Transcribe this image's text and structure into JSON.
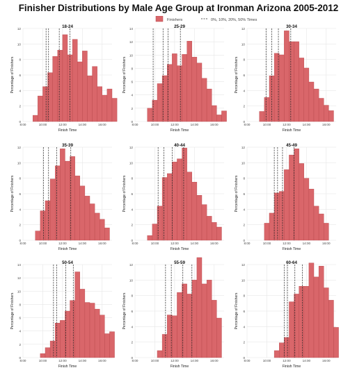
{
  "title": "Finisher Distributions by Male Age Group at Ironman Arizona 2005-2012",
  "legend": {
    "finishers_label": "Finishers",
    "times_label": "0%, 10%, 20%, 50% Times"
  },
  "colors": {
    "bar_fill": "#d9666a",
    "bar_stroke": "#b8474b",
    "panel_bg": "#ffffff",
    "grid": "#e6e6e6",
    "marker_line": "#222222"
  },
  "chart_data": [
    {
      "type": "bar",
      "title": "18-24",
      "xlabel": "Finish Time",
      "ylabel": "Percentage of Finishers",
      "xlim": [
        "8:00",
        "17:00"
      ],
      "ylim": [
        0,
        12
      ],
      "xticks": [
        "8:00",
        "10:00",
        "12:00",
        "14:00",
        "16:00"
      ],
      "yticks": [
        0,
        2,
        4,
        6,
        8,
        10,
        12
      ],
      "bin_start_hours": 9.0,
      "bin_width_hours": 0.5,
      "values": [
        0.8,
        3.3,
        4.5,
        6.3,
        8.4,
        9.2,
        11.2,
        8.6,
        10.6,
        7.7,
        9.1,
        5.9,
        7.1,
        4.5,
        3.4,
        4.2,
        3.0
      ],
      "marker_times": [
        "10:20",
        "10:35",
        "11:40",
        "12:45"
      ]
    },
    {
      "type": "bar",
      "title": "25-29",
      "xlabel": "Finish Time",
      "ylabel": "Percentage of Finishers",
      "xlim": [
        "8:00",
        "17:00"
      ],
      "ylim": [
        0,
        14
      ],
      "xticks": [
        "8:00",
        "10:00",
        "12:00",
        "14:00",
        "16:00"
      ],
      "yticks": [
        0,
        2,
        4,
        6,
        8,
        10,
        12,
        14
      ],
      "bin_start_hours": 9.25,
      "bin_width_hours": 0.5,
      "values": [
        2.0,
        3.2,
        5.7,
        6.9,
        8.6,
        10.2,
        8.4,
        10.1,
        12.1,
        9.7,
        8.8,
        6.5,
        4.9,
        2.4,
        1.0,
        1.6
      ],
      "marker_times": [
        "9:50",
        "10:50",
        "11:20",
        "12:35"
      ]
    },
    {
      "type": "bar",
      "title": "30-34",
      "xlabel": "Finish Time",
      "ylabel": "Percentage of Finishers",
      "xlim": [
        "8:00",
        "17:00"
      ],
      "ylim": [
        0,
        12
      ],
      "xticks": [
        "8:00",
        "10:00",
        "12:00",
        "14:00",
        "16:00"
      ],
      "yticks": [
        0,
        2,
        4,
        6,
        8,
        10,
        12
      ],
      "bin_start_hours": 9.25,
      "bin_width_hours": 0.5,
      "values": [
        1.3,
        3.1,
        5.9,
        8.8,
        8.6,
        11.7,
        10.3,
        10.3,
        8.2,
        6.9,
        5.1,
        4.2,
        3.0,
        2.1,
        1.4
      ],
      "marker_times": [
        "9:55",
        "10:30",
        "11:10",
        "12:25"
      ]
    },
    {
      "type": "bar",
      "title": "35-39",
      "xlabel": "Finish Time",
      "ylabel": "Percentage of Finishers",
      "xlim": [
        "8:00",
        "17:00"
      ],
      "ylim": [
        0,
        12
      ],
      "xticks": [
        "8:00",
        "10:00",
        "12:00",
        "14:00",
        "16:00"
      ],
      "yticks": [
        0,
        2,
        4,
        6,
        8,
        10,
        12
      ],
      "bin_start_hours": 9.25,
      "bin_width_hours": 0.5,
      "values": [
        1.2,
        3.8,
        5.1,
        7.9,
        9.6,
        11.8,
        10.2,
        10.8,
        8.3,
        7.0,
        5.7,
        4.7,
        3.5,
        2.7,
        1.6
      ],
      "marker_times": [
        "10:05",
        "10:35",
        "11:25",
        "12:50"
      ]
    },
    {
      "type": "bar",
      "title": "40-44",
      "xlabel": "Finish Time",
      "ylabel": "Percentage of Finishers",
      "xlim": [
        "8:00",
        "17:00"
      ],
      "ylim": [
        0,
        12
      ],
      "xticks": [
        "8:00",
        "10:00",
        "12:00",
        "14:00",
        "16:00"
      ],
      "yticks": [
        0,
        2,
        4,
        6,
        8,
        10,
        12
      ],
      "bin_start_hours": 9.25,
      "bin_width_hours": 0.5,
      "values": [
        0.6,
        2.1,
        4.4,
        8.1,
        8.6,
        10.1,
        10.5,
        11.9,
        8.8,
        7.5,
        5.8,
        4.6,
        3.1,
        2.3,
        1.7
      ],
      "marker_times": [
        "10:20",
        "10:55",
        "11:45",
        "12:55"
      ]
    },
    {
      "type": "bar",
      "title": "45-49",
      "xlabel": "Finish Time",
      "ylabel": "Percentage of Finishers",
      "xlim": [
        "8:00",
        "17:00"
      ],
      "ylim": [
        0,
        12
      ],
      "xticks": [
        "8:00",
        "10:00",
        "12:00",
        "14:00",
        "16:00"
      ],
      "yticks": [
        0,
        2,
        4,
        6,
        8,
        10,
        12
      ],
      "bin_start_hours": 9.75,
      "bin_width_hours": 0.5,
      "values": [
        2.2,
        3.5,
        6.1,
        6.3,
        9.1,
        11.0,
        11.8,
        9.9,
        8.0,
        6.6,
        4.4,
        3.4,
        2.2
      ],
      "marker_times": [
        "10:45",
        "11:05",
        "11:35",
        "12:45"
      ]
    },
    {
      "type": "bar",
      "title": "50-54",
      "xlabel": "Finish Time",
      "ylabel": "Percentage of Finishers",
      "xlim": [
        "8:00",
        "17:00"
      ],
      "ylim": [
        0,
        14
      ],
      "xticks": [
        "8:00",
        "10:00",
        "12:00",
        "14:00",
        "16:00"
      ],
      "yticks": [
        0,
        2,
        4,
        6,
        8,
        10,
        12,
        14
      ],
      "bin_start_hours": 9.75,
      "bin_width_hours": 0.5,
      "values": [
        0.6,
        1.5,
        2.5,
        5.2,
        5.6,
        7.0,
        8.6,
        12.9,
        10.3,
        8.3,
        8.2,
        7.3,
        6.4,
        3.6,
        3.9
      ],
      "marker_times": [
        "11:05",
        "11:25",
        "12:20",
        "13:05"
      ]
    },
    {
      "type": "bar",
      "title": "55-59",
      "xlabel": "Finish Time",
      "ylabel": "Percentage of Finishers",
      "xlim": [
        "8:00",
        "17:00"
      ],
      "ylim": [
        0,
        12
      ],
      "xticks": [
        "8:00",
        "10:00",
        "12:00",
        "14:00",
        "16:00"
      ],
      "yticks": [
        0,
        2,
        4,
        6,
        8,
        10,
        12
      ],
      "bin_start_hours": 10.25,
      "bin_width_hours": 0.5,
      "values": [
        0.9,
        3.0,
        5.5,
        5.4,
        8.4,
        9.5,
        8.2,
        10.0,
        12.9,
        9.5,
        10.0,
        7.4,
        5.1
      ],
      "marker_times": [
        "11:05",
        "11:40",
        "12:50",
        "13:45"
      ]
    },
    {
      "type": "bar",
      "title": "60-64",
      "xlabel": "Finish Time",
      "ylabel": "Percentage of Finishers",
      "xlim": [
        "8:00",
        "17:00"
      ],
      "ylim": [
        0,
        12
      ],
      "xticks": [
        "8:00",
        "10:00",
        "12:00",
        "14:00",
        "16:00"
      ],
      "yticks": [
        0,
        2,
        4,
        6,
        8,
        10,
        12
      ],
      "bin_start_hours": 10.75,
      "bin_width_hours": 0.5,
      "values": [
        0.9,
        1.9,
        2.6,
        7.2,
        8.2,
        9.2,
        9.2,
        12.2,
        10.4,
        11.8,
        9.0,
        7.4,
        3.9
      ],
      "marker_times": [
        "11:45",
        "12:05",
        "12:50",
        "13:35"
      ]
    }
  ]
}
